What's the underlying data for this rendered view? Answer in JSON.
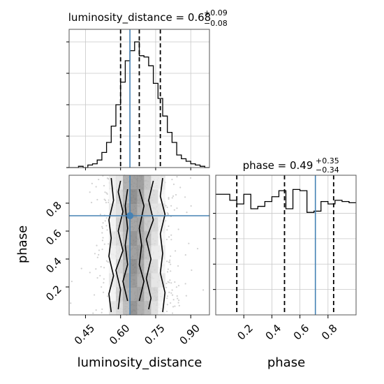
{
  "chart_data": [
    {
      "id": "hist_luminosity_distance",
      "type": "histogram",
      "title_param": "luminosity_distance",
      "title_value": "0.68",
      "title_plus": "+0.09",
      "title_minus": "−0.08",
      "xlim": [
        0.38,
        0.98
      ],
      "ylim": [
        0,
        1.1
      ],
      "grid": true,
      "bin_edges": [
        0.38,
        0.4,
        0.42,
        0.44,
        0.46,
        0.48,
        0.5,
        0.52,
        0.54,
        0.56,
        0.58,
        0.6,
        0.62,
        0.64,
        0.66,
        0.68,
        0.7,
        0.72,
        0.74,
        0.76,
        0.78,
        0.8,
        0.82,
        0.84,
        0.86,
        0.88,
        0.9,
        0.92,
        0.94,
        0.96,
        0.98
      ],
      "counts": [
        0.0,
        0.0,
        0.01,
        0.0,
        0.02,
        0.03,
        0.06,
        0.12,
        0.2,
        0.33,
        0.5,
        0.68,
        0.85,
        0.93,
        1.0,
        0.89,
        0.88,
        0.81,
        0.67,
        0.55,
        0.41,
        0.28,
        0.2,
        0.1,
        0.07,
        0.05,
        0.03,
        0.02,
        0.01,
        0.0
      ],
      "quantile_lines": [
        0.6,
        0.68,
        0.77
      ],
      "truth_x": 0.64,
      "yticks": [
        0,
        0.25,
        0.5,
        0.75,
        1.0
      ],
      "xticks": [
        0.45,
        0.6,
        0.75,
        0.9
      ]
    },
    {
      "id": "hist2d_luminosity_distance_phase",
      "type": "contour_scatter",
      "xlabel": "luminosity_distance",
      "ylabel": "phase",
      "xlim": [
        0.38,
        0.98
      ],
      "ylim": [
        0.0,
        1.0
      ],
      "xticks": [
        0.45,
        0.6,
        0.75,
        0.9
      ],
      "xticklabels": [
        "0.45",
        "0.60",
        "0.75",
        "0.90"
      ],
      "yticks": [
        0.2,
        0.4,
        0.6,
        0.8
      ],
      "yticklabels": [
        "0.2",
        "0.4",
        "0.6",
        "0.8"
      ],
      "truth": {
        "x": 0.64,
        "y": 0.71
      },
      "contours": [
        {
          "level": "outer",
          "left": [
            [
              0.56,
              0.02
            ],
            [
              0.55,
              0.15
            ],
            [
              0.57,
              0.28
            ],
            [
              0.55,
              0.42
            ],
            [
              0.56,
              0.55
            ],
            [
              0.55,
              0.68
            ],
            [
              0.57,
              0.82
            ],
            [
              0.56,
              0.98
            ]
          ],
          "right": [
            [
              0.78,
              0.98
            ],
            [
              0.77,
              0.85
            ],
            [
              0.79,
              0.72
            ],
            [
              0.77,
              0.58
            ],
            [
              0.78,
              0.44
            ],
            [
              0.77,
              0.3
            ],
            [
              0.79,
              0.16
            ],
            [
              0.78,
              0.02
            ]
          ]
        },
        {
          "level": "middle",
          "left": [
            [
              0.59,
              0.04
            ],
            [
              0.6,
              0.18
            ],
            [
              0.58,
              0.32
            ],
            [
              0.61,
              0.46
            ],
            [
              0.59,
              0.6
            ],
            [
              0.61,
              0.74
            ],
            [
              0.59,
              0.88
            ],
            [
              0.6,
              0.96
            ]
          ],
          "right": [
            [
              0.74,
              0.96
            ],
            [
              0.72,
              0.82
            ],
            [
              0.74,
              0.68
            ],
            [
              0.71,
              0.54
            ],
            [
              0.73,
              0.4
            ],
            [
              0.71,
              0.26
            ],
            [
              0.73,
              0.12
            ],
            [
              0.72,
              0.04
            ]
          ]
        },
        {
          "level": "inner",
          "left": [
            [
              0.63,
              0.1
            ],
            [
              0.61,
              0.24
            ],
            [
              0.63,
              0.36
            ],
            [
              0.62,
              0.5
            ],
            [
              0.63,
              0.62
            ],
            [
              0.62,
              0.78
            ],
            [
              0.63,
              0.9
            ]
          ],
          "right": [
            [
              0.68,
              0.9
            ],
            [
              0.7,
              0.78
            ],
            [
              0.68,
              0.62
            ],
            [
              0.69,
              0.5
            ],
            [
              0.68,
              0.36
            ],
            [
              0.7,
              0.24
            ],
            [
              0.68,
              0.1
            ]
          ]
        }
      ]
    },
    {
      "id": "hist_phase",
      "type": "histogram",
      "title_param": "phase",
      "title_value": "0.49",
      "title_plus": "+0.35",
      "title_minus": "−0.34",
      "xlim": [
        0.0,
        1.0
      ],
      "ylim": [
        0,
        1.1
      ],
      "grid": true,
      "xticks": [
        0.2,
        0.4,
        0.6,
        0.8
      ],
      "xticklabels": [
        "0.2",
        "0.4",
        "0.6",
        "0.8"
      ],
      "xlabel": "phase",
      "bin_edges": [
        0.0,
        0.05,
        0.1,
        0.15,
        0.2,
        0.25,
        0.3,
        0.35,
        0.4,
        0.45,
        0.5,
        0.55,
        0.6,
        0.65,
        0.7,
        0.75,
        0.8,
        0.85,
        0.9,
        0.95,
        1.0
      ],
      "counts": [
        1.0,
        1.0,
        0.95,
        0.92,
        1.0,
        0.88,
        0.9,
        0.94,
        0.98,
        1.03,
        0.88,
        1.04,
        1.03,
        0.85,
        0.86,
        0.94,
        0.92,
        0.95,
        0.94,
        0.93
      ],
      "quantile_lines": [
        0.15,
        0.49,
        0.84
      ],
      "truth_x": 0.71
    }
  ]
}
